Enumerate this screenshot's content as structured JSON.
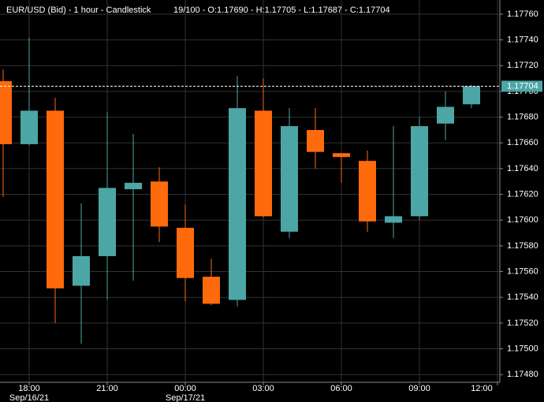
{
  "chart_data": {
    "type": "candlestick",
    "title": "EUR/USD (Bid) - 1 hour - Candlestick",
    "subtitle": "19/100 - O:1.17690 - H:1.17705 - L:1.17687 - C:1.17704",
    "categories": [
      null,
      null,
      null,
      null,
      null,
      null,
      null,
      null,
      null,
      null,
      null,
      null,
      null,
      null,
      null,
      null,
      null,
      null,
      null
    ],
    "open": [
      1.17708,
      1.17659,
      1.17685,
      1.17549,
      1.17572,
      1.17624,
      1.1763,
      1.17594,
      1.17556,
      1.17538,
      1.17685,
      1.17591,
      1.1767,
      1.17652,
      1.17646,
      1.17598,
      1.17603,
      1.17675,
      1.1769
    ],
    "high": [
      1.17717,
      1.17742,
      1.17695,
      1.17613,
      1.17684,
      1.17667,
      1.17641,
      1.17612,
      1.1757,
      1.17712,
      1.1771,
      1.17687,
      1.17687,
      1.17652,
      1.17654,
      1.17673,
      1.1768,
      1.177,
      1.17705
    ],
    "low": [
      1.17618,
      1.17658,
      1.1752,
      1.17504,
      1.17538,
      1.17553,
      1.17583,
      1.17537,
      1.17534,
      1.17533,
      1.17602,
      1.17586,
      1.1764,
      1.17629,
      1.17591,
      1.17586,
      1.176,
      1.17662,
      1.17687
    ],
    "close": [
      1.17659,
      1.17685,
      1.17547,
      1.17572,
      1.17625,
      1.17629,
      1.17595,
      1.17555,
      1.17535,
      1.17687,
      1.17603,
      1.17673,
      1.17653,
      1.17649,
      1.17599,
      1.17603,
      1.17673,
      1.17688,
      1.17704
    ],
    "up_color": "#4da6a6",
    "down_color": "#ff6a0d",
    "last_price": {
      "value": 1.17704,
      "label": "1.17704"
    },
    "ylim": [
      1.17474,
      1.17771
    ],
    "yticks": [
      {
        "value": 1.1776,
        "label": "1.17760"
      },
      {
        "value": 1.1774,
        "label": "1.17740"
      },
      {
        "value": 1.1772,
        "label": "1.17720"
      },
      {
        "value": 1.177,
        "label": "1.17700"
      },
      {
        "value": 1.1768,
        "label": "1.17680"
      },
      {
        "value": 1.1766,
        "label": "1.17660"
      },
      {
        "value": 1.1764,
        "label": "1.17640"
      },
      {
        "value": 1.1762,
        "label": "1.17620"
      },
      {
        "value": 1.176,
        "label": "1.17600"
      },
      {
        "value": 1.1758,
        "label": "1.17580"
      },
      {
        "value": 1.1756,
        "label": "1.17560"
      },
      {
        "value": 1.1754,
        "label": "1.17540"
      },
      {
        "value": 1.1752,
        "label": "1.17520"
      },
      {
        "value": 1.175,
        "label": "1.17500"
      },
      {
        "value": 1.1748,
        "label": "1.17480"
      }
    ],
    "xticks": [
      {
        "value": 1,
        "label": "18:00",
        "date": "Sep/16/21"
      },
      {
        "value": 4,
        "label": "21:00"
      },
      {
        "value": 7,
        "label": "00:00",
        "date": "Sep/17/21"
      },
      {
        "value": 10,
        "label": "03:00"
      },
      {
        "value": 13,
        "label": "06:00"
      },
      {
        "value": 16,
        "label": "09:00"
      },
      {
        "value": 19,
        "label": "12:00"
      }
    ],
    "grid": true
  }
}
